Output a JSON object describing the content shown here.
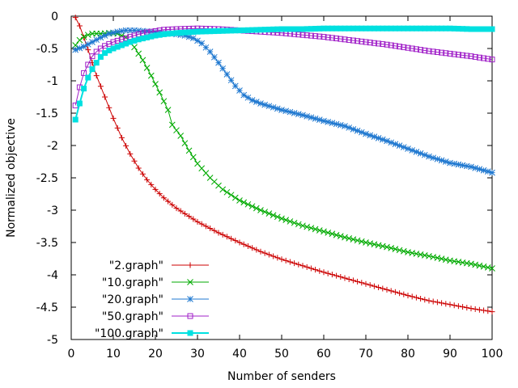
{
  "chart_data": {
    "type": "line",
    "xlabel": "Number of senders",
    "ylabel": "Normalized objective",
    "xlim": [
      0,
      100
    ],
    "ylim": [
      -5,
      0
    ],
    "xticks": [
      "0",
      "10",
      "20",
      "30",
      "40",
      "50",
      "60",
      "70",
      "80",
      "90",
      "100"
    ],
    "yticks": [
      "0",
      "-0.5",
      "-1",
      "-1.5",
      "-2",
      "-2.5",
      "-3",
      "-3.5",
      "-4",
      "-4.5",
      "-5"
    ],
    "grid": false,
    "legend_position": "bottom-left",
    "series": [
      {
        "name": "\"2.graph\"",
        "color": "#cc0000",
        "marker": "plus",
        "points": [
          [
            1,
            -0.02
          ],
          [
            2,
            -0.15
          ],
          [
            3,
            -0.33
          ],
          [
            4,
            -0.52
          ],
          [
            5,
            -0.72
          ],
          [
            6,
            -0.92
          ],
          [
            8,
            -1.25
          ],
          [
            10,
            -1.58
          ],
          [
            12,
            -1.88
          ],
          [
            14,
            -2.13
          ],
          [
            16,
            -2.35
          ],
          [
            18,
            -2.53
          ],
          [
            20,
            -2.68
          ],
          [
            22,
            -2.81
          ],
          [
            25,
            -2.97
          ],
          [
            30,
            -3.18
          ],
          [
            35,
            -3.35
          ],
          [
            40,
            -3.5
          ],
          [
            45,
            -3.64
          ],
          [
            50,
            -3.76
          ],
          [
            55,
            -3.86
          ],
          [
            60,
            -3.96
          ],
          [
            65,
            -4.05
          ],
          [
            70,
            -4.14
          ],
          [
            75,
            -4.23
          ],
          [
            80,
            -4.32
          ],
          [
            85,
            -4.4
          ],
          [
            90,
            -4.46
          ],
          [
            95,
            -4.52
          ],
          [
            100,
            -4.57
          ]
        ]
      },
      {
        "name": "\"10.graph\"",
        "color": "#00aa00",
        "marker": "x",
        "points": [
          [
            1,
            -0.45
          ],
          [
            2,
            -0.37
          ],
          [
            3,
            -0.32
          ],
          [
            4,
            -0.29
          ],
          [
            5,
            -0.27
          ],
          [
            7,
            -0.27
          ],
          [
            9,
            -0.26
          ],
          [
            11,
            -0.27
          ],
          [
            13,
            -0.33
          ],
          [
            15,
            -0.48
          ],
          [
            17,
            -0.68
          ],
          [
            19,
            -0.92
          ],
          [
            21,
            -1.18
          ],
          [
            23,
            -1.45
          ],
          [
            24,
            -1.68
          ],
          [
            26,
            -1.85
          ],
          [
            28,
            -2.08
          ],
          [
            30,
            -2.28
          ],
          [
            33,
            -2.5
          ],
          [
            36,
            -2.68
          ],
          [
            40,
            -2.85
          ],
          [
            45,
            -3.0
          ],
          [
            50,
            -3.13
          ],
          [
            55,
            -3.24
          ],
          [
            60,
            -3.33
          ],
          [
            65,
            -3.42
          ],
          [
            70,
            -3.5
          ],
          [
            75,
            -3.57
          ],
          [
            80,
            -3.65
          ],
          [
            85,
            -3.71
          ],
          [
            90,
            -3.78
          ],
          [
            95,
            -3.83
          ],
          [
            100,
            -3.9
          ]
        ]
      },
      {
        "name": "\"20.graph\"",
        "color": "#1f78d0",
        "marker": "star",
        "points": [
          [
            1,
            -0.52
          ],
          [
            3,
            -0.47
          ],
          [
            5,
            -0.4
          ],
          [
            7,
            -0.33
          ],
          [
            9,
            -0.27
          ],
          [
            11,
            -0.24
          ],
          [
            13,
            -0.22
          ],
          [
            15,
            -0.22
          ],
          [
            17,
            -0.23
          ],
          [
            19,
            -0.24
          ],
          [
            21,
            -0.25
          ],
          [
            23,
            -0.26
          ],
          [
            25,
            -0.28
          ],
          [
            27,
            -0.3
          ],
          [
            29,
            -0.34
          ],
          [
            31,
            -0.42
          ],
          [
            33,
            -0.55
          ],
          [
            35,
            -0.72
          ],
          [
            37,
            -0.9
          ],
          [
            39,
            -1.08
          ],
          [
            41,
            -1.22
          ],
          [
            43,
            -1.3
          ],
          [
            45,
            -1.35
          ],
          [
            50,
            -1.45
          ],
          [
            55,
            -1.53
          ],
          [
            60,
            -1.62
          ],
          [
            65,
            -1.7
          ],
          [
            70,
            -1.82
          ],
          [
            75,
            -1.93
          ],
          [
            80,
            -2.05
          ],
          [
            85,
            -2.17
          ],
          [
            90,
            -2.27
          ],
          [
            95,
            -2.33
          ],
          [
            100,
            -2.42
          ]
        ]
      },
      {
        "name": "\"50.graph\"",
        "color": "#a020c8",
        "marker": "square",
        "points": [
          [
            1,
            -1.38
          ],
          [
            2,
            -1.1
          ],
          [
            3,
            -0.88
          ],
          [
            4,
            -0.75
          ],
          [
            5,
            -0.62
          ],
          [
            6,
            -0.55
          ],
          [
            7,
            -0.5
          ],
          [
            8,
            -0.46
          ],
          [
            9,
            -0.43
          ],
          [
            10,
            -0.4
          ],
          [
            12,
            -0.36
          ],
          [
            14,
            -0.32
          ],
          [
            16,
            -0.28
          ],
          [
            18,
            -0.25
          ],
          [
            20,
            -0.23
          ],
          [
            22,
            -0.21
          ],
          [
            25,
            -0.2
          ],
          [
            30,
            -0.19
          ],
          [
            35,
            -0.2
          ],
          [
            40,
            -0.22
          ],
          [
            45,
            -0.24
          ],
          [
            50,
            -0.26
          ],
          [
            55,
            -0.29
          ],
          [
            60,
            -0.32
          ],
          [
            65,
            -0.36
          ],
          [
            70,
            -0.4
          ],
          [
            75,
            -0.44
          ],
          [
            80,
            -0.49
          ],
          [
            85,
            -0.54
          ],
          [
            90,
            -0.58
          ],
          [
            95,
            -0.62
          ],
          [
            100,
            -0.67
          ]
        ]
      },
      {
        "name": "\"100.graph\"",
        "color": "#00e0e0",
        "marker": "filled-square",
        "points": [
          [
            1,
            -1.6
          ],
          [
            2,
            -1.35
          ],
          [
            3,
            -1.12
          ],
          [
            4,
            -0.95
          ],
          [
            5,
            -0.82
          ],
          [
            6,
            -0.72
          ],
          [
            7,
            -0.63
          ],
          [
            8,
            -0.57
          ],
          [
            9,
            -0.53
          ],
          [
            10,
            -0.5
          ],
          [
            12,
            -0.45
          ],
          [
            14,
            -0.4
          ],
          [
            16,
            -0.36
          ],
          [
            18,
            -0.33
          ],
          [
            20,
            -0.3
          ],
          [
            22,
            -0.28
          ],
          [
            25,
            -0.26
          ],
          [
            30,
            -0.24
          ],
          [
            35,
            -0.23
          ],
          [
            40,
            -0.22
          ],
          [
            45,
            -0.21
          ],
          [
            50,
            -0.2
          ],
          [
            55,
            -0.2
          ],
          [
            60,
            -0.19
          ],
          [
            65,
            -0.19
          ],
          [
            70,
            -0.19
          ],
          [
            75,
            -0.19
          ],
          [
            80,
            -0.19
          ],
          [
            85,
            -0.19
          ],
          [
            90,
            -0.19
          ],
          [
            95,
            -0.2
          ],
          [
            100,
            -0.2
          ]
        ]
      }
    ]
  }
}
